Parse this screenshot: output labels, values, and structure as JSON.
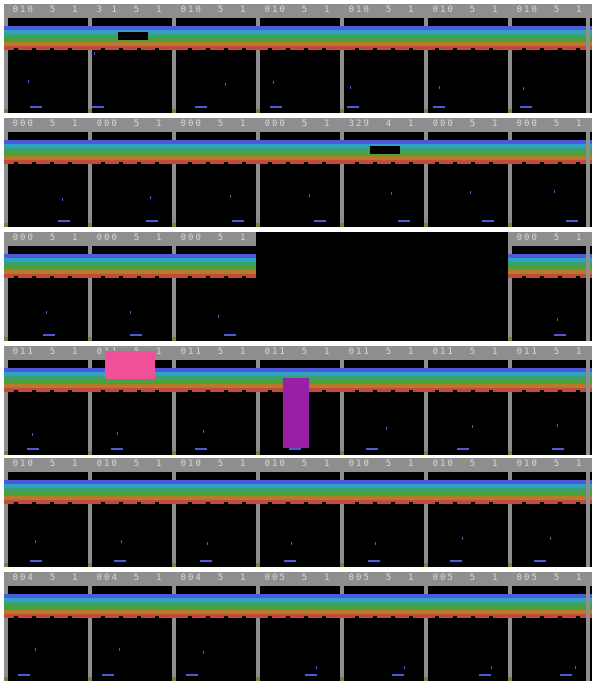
{
  "palette": {
    "hud": "#8e8e8e",
    "row_colors": [
      "#4a5ad8",
      "#2fa0c8",
      "#3aa06a",
      "#4aa03a",
      "#b87a2a",
      "#c24a3a"
    ],
    "paddle": "#4a5ad8",
    "pink_block": "#f0509a",
    "purple_block": "#9a1fa8"
  },
  "strips": [
    {
      "name": "strip-1",
      "frames": [
        {
          "score": "010  5  1",
          "ball_y": 0.55,
          "ball_x": 0.25,
          "paddle_x": 0.35
        },
        {
          "score": "3 1  5  1",
          "ball_y": 0.0,
          "ball_x": 0.0,
          "paddle_x": 0.0,
          "broken_bricks": true
        },
        {
          "score": "010  5  1",
          "ball_y": 0.62,
          "ball_x": 0.65,
          "paddle_x": 0.3
        },
        {
          "score": "010  5  1",
          "ball_y": 0.58,
          "ball_x": 0.15,
          "paddle_x": 0.15
        },
        {
          "score": "010  5  1",
          "ball_y": 0.68,
          "ball_x": 0.05,
          "paddle_x": 0.05
        },
        {
          "score": "010  5  1",
          "ball_y": 0.68,
          "ball_x": 0.12,
          "paddle_x": 0.08
        },
        {
          "score": "010  5  1",
          "ball_y": 0.7,
          "ball_x": 0.12,
          "paddle_x": 0.12
        }
      ]
    },
    {
      "name": "strip-2",
      "frames": [
        {
          "score": "000  5  1",
          "ball_y": 0.63,
          "ball_x": 0.72,
          "paddle_x": 0.78
        },
        {
          "score": "000  5  1",
          "ball_y": 0.6,
          "ball_x": 0.78,
          "paddle_x": 0.85
        },
        {
          "score": "000  5  1",
          "ball_y": 0.58,
          "ball_x": 0.72,
          "paddle_x": 0.88
        },
        {
          "score": "000  5  1",
          "ball_y": 0.55,
          "ball_x": 0.65,
          "paddle_x": 0.85
        },
        {
          "score": "329  4  1",
          "ball_y": 0.52,
          "ball_x": 0.62,
          "paddle_x": 0.85,
          "broken_bricks": true
        },
        {
          "score": "000  5  1",
          "ball_y": 0.5,
          "ball_x": 0.55,
          "paddle_x": 0.85
        },
        {
          "score": "000  5  1",
          "ball_y": 0.48,
          "ball_x": 0.55,
          "paddle_x": 0.85
        }
      ]
    },
    {
      "name": "strip-3",
      "frames": [
        {
          "score": "000  5  1",
          "ball_y": 0.62,
          "ball_x": 0.5,
          "paddle_x": 0.55
        },
        {
          "score": "000  5  1",
          "ball_y": 0.62,
          "ball_x": 0.5,
          "paddle_x": 0.6
        },
        {
          "score": "000  5  1",
          "ball_y": 0.7,
          "ball_x": 0.55,
          "paddle_x": 0.75
        },
        {
          "score": "",
          "blank": true
        },
        {
          "score": "",
          "blank": true
        },
        {
          "score": "",
          "blank": true
        },
        {
          "score": "000  5  1",
          "ball_y": 0.75,
          "ball_x": 0.6,
          "paddle_x": 0.65
        }
      ]
    },
    {
      "name": "strip-4",
      "frames": [
        {
          "score": "011  5  1",
          "ball_y": 0.78,
          "ball_x": 0.3,
          "paddle_x": 0.3
        },
        {
          "score": "011  5  1",
          "ball_y": 0.75,
          "ball_x": 0.32,
          "paddle_x": 0.3
        },
        {
          "score": "011  5  1",
          "ball_y": 0.72,
          "ball_x": 0.35,
          "paddle_x": 0.3
        },
        {
          "score": "011  5  1",
          "ball_y": 0.68,
          "ball_x": 0.45,
          "paddle_x": 0.45
        },
        {
          "score": "011  5  1",
          "ball_y": 0.65,
          "ball_x": 0.55,
          "paddle_x": 0.35
        },
        {
          "score": "011  5  1",
          "ball_y": 0.62,
          "ball_x": 0.58,
          "paddle_x": 0.45
        },
        {
          "score": "011  5  1",
          "ball_y": 0.6,
          "ball_x": 0.6,
          "paddle_x": 0.62
        }
      ]
    },
    {
      "name": "strip-5",
      "frames": [
        {
          "score": "010  5  1",
          "ball_y": 0.68,
          "ball_x": 0.35,
          "paddle_x": 0.35
        },
        {
          "score": "010  5  1",
          "ball_y": 0.68,
          "ball_x": 0.38,
          "paddle_x": 0.35
        },
        {
          "score": "010  5  1",
          "ball_y": 0.72,
          "ball_x": 0.4,
          "paddle_x": 0.38
        },
        {
          "score": "010  5  1",
          "ball_y": 0.72,
          "ball_x": 0.4,
          "paddle_x": 0.38
        },
        {
          "score": "010  5  1",
          "ball_y": 0.72,
          "ball_x": 0.4,
          "paddle_x": 0.38
        },
        {
          "score": "010  5  1",
          "ball_y": 0.62,
          "ball_x": 0.45,
          "paddle_x": 0.35
        },
        {
          "score": "010  5  1",
          "ball_y": 0.62,
          "ball_x": 0.5,
          "paddle_x": 0.35
        }
      ]
    },
    {
      "name": "strip-6",
      "frames": [
        {
          "score": "004  5  1",
          "ball_y": 0.55,
          "ball_x": 0.35,
          "paddle_x": 0.15
        },
        {
          "score": "004  5  1",
          "ball_y": 0.55,
          "ball_x": 0.35,
          "paddle_x": 0.15
        },
        {
          "score": "004  5  1",
          "ball_y": 0.62,
          "ball_x": 0.35,
          "paddle_x": 0.15
        },
        {
          "score": "005  5  1",
          "ball_y": 0.92,
          "ball_x": 0.75,
          "paddle_x": 0.7
        },
        {
          "score": "005  5  1",
          "ball_y": 0.92,
          "ball_x": 0.8,
          "paddle_x": 0.75
        },
        {
          "score": "005  5  1",
          "ball_y": 0.92,
          "ball_x": 0.85,
          "paddle_x": 0.8
        },
        {
          "score": "005  5  1",
          "ball_y": 0.92,
          "ball_x": 0.85,
          "paddle_x": 0.75
        }
      ]
    }
  ]
}
